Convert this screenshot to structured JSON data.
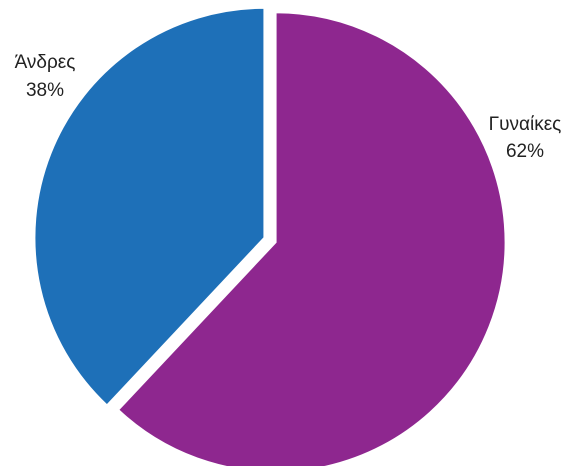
{
  "chart_data": {
    "type": "pie",
    "slices": [
      {
        "name": "Γυναίκες",
        "value": 62,
        "label": "62%",
        "color": "#8E278F"
      },
      {
        "name": "Άνδρες",
        "value": 38,
        "label": "38%",
        "color": "#1E70B8"
      }
    ],
    "start_angle": "12 o'clock",
    "direction": "clockwise",
    "exploded": true,
    "legend": "none",
    "labels_position": "outside"
  }
}
